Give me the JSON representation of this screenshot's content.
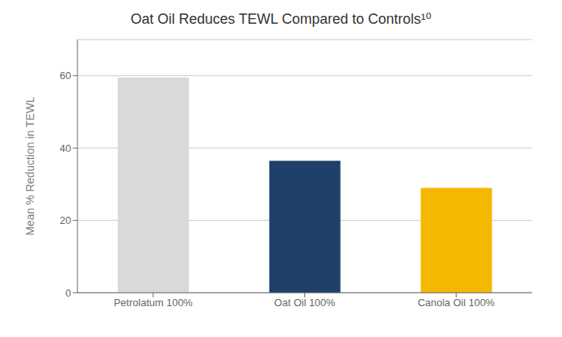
{
  "chart_data": {
    "type": "bar",
    "title": "Oat Oil Reduces TEWL Compared to Controls¹⁰",
    "categories": [
      "Petrolatum 100%",
      "Oat Oil 100%",
      "Canola Oil 100%"
    ],
    "values": [
      59.5,
      36.5,
      29.0
    ],
    "colors": [
      "#d9d9d9",
      "#1f4068",
      "#f5b800"
    ],
    "ylabel": "Mean % Reduction in TEWL",
    "ylim": [
      0,
      70
    ],
    "yticks": [
      0,
      20,
      40,
      60
    ],
    "grid": true
  }
}
